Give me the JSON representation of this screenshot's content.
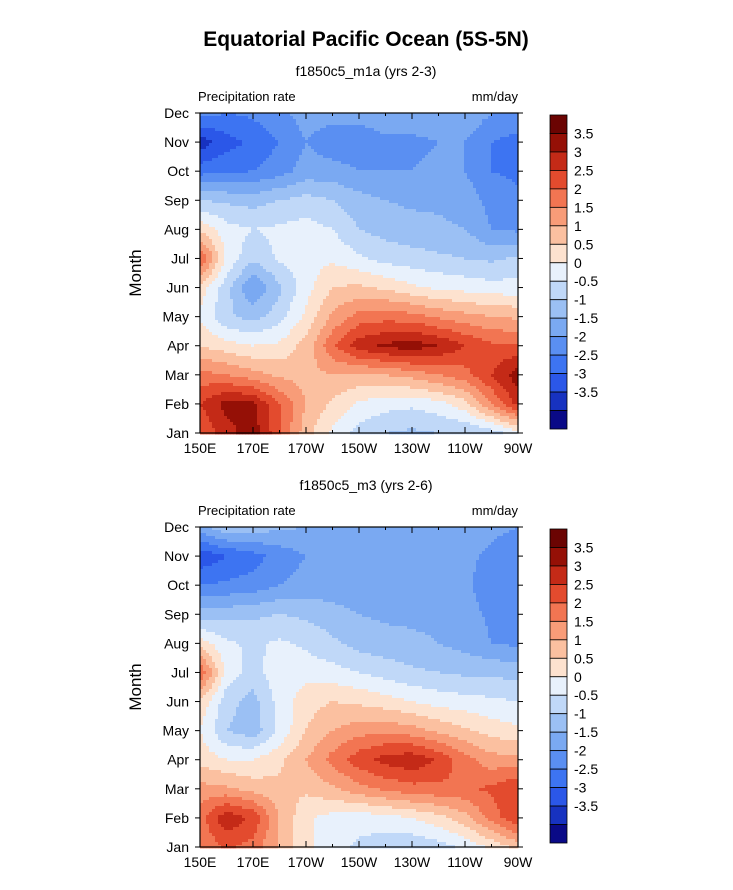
{
  "figure": {
    "title": "Equatorial Pacific Ocean (5S-5N)"
  },
  "colors": {
    "levels": [
      "#0a0a87",
      "#1732c0",
      "#2b57e8",
      "#3d74f2",
      "#5a8ff2",
      "#7aa9f2",
      "#9bc0f4",
      "#c0d8f8",
      "#e8f1fc",
      "#fde2cf",
      "#fbc0a0",
      "#f89c78",
      "#f27552",
      "#e34b2e",
      "#c42a17",
      "#951006",
      "#6b0402"
    ]
  },
  "chart_data": [
    {
      "type": "heatmap",
      "title": "f1850c5_m1a (yrs 2-3)",
      "left_label": "Precipitation rate",
      "right_label": "mm/day",
      "ylabel": "Month",
      "xlabel": "",
      "x_ticks": [
        "150E",
        "170E",
        "170W",
        "150W",
        "130W",
        "110W",
        "90W"
      ],
      "x_range_deg": [
        150,
        270
      ],
      "y_ticks": [
        "Jan",
        "Feb",
        "Mar",
        "Apr",
        "May",
        "Jun",
        "Jul",
        "Aug",
        "Sep",
        "Oct",
        "Nov",
        "Dec"
      ],
      "y_range": [
        1,
        12
      ],
      "colorbar_levels": [
        -4,
        -3.5,
        -3,
        -2.5,
        -2,
        -1.5,
        -1,
        -0.5,
        0,
        0.5,
        1,
        1.5,
        2,
        2.5,
        3,
        3.5,
        4
      ],
      "colorbar_labels": [
        "3.5",
        "3",
        "2.5",
        "2",
        "1.5",
        "1",
        "0.5",
        "0",
        "-0.5",
        "-1",
        "-1.5",
        "-2",
        "-2.5",
        "-3",
        "-3.5"
      ],
      "field": {
        "lon": [
          150,
          160,
          170,
          180,
          190,
          200,
          210,
          220,
          230,
          240,
          250,
          260,
          270
        ],
        "values": [
          [
            2.5,
            3.3,
            3.8,
            2.6,
            1.2,
            0.4,
            -0.2,
            -0.5,
            -0.6,
            -0.5,
            -0.5,
            -0.3,
            0.3
          ],
          [
            3.0,
            3.7,
            3.6,
            2.5,
            1.5,
            0.9,
            0.4,
            0.2,
            0.1,
            0.3,
            0.8,
            2.0,
            3.2
          ],
          [
            2.2,
            2.0,
            1.7,
            1.4,
            1.3,
            1.5,
            1.4,
            1.5,
            1.7,
            2.0,
            2.3,
            3.0,
            3.8
          ],
          [
            1.0,
            0.7,
            0.5,
            0.6,
            1.2,
            2.4,
            3.3,
            3.6,
            3.8,
            3.5,
            3.0,
            2.6,
            2.6
          ],
          [
            0.4,
            -0.4,
            -0.7,
            -0.2,
            0.6,
            1.6,
            2.2,
            2.3,
            2.2,
            1.9,
            1.7,
            1.5,
            1.4
          ],
          [
            0.8,
            -0.3,
            -1.5,
            -0.6,
            0.3,
            1.0,
            1.1,
            0.9,
            0.6,
            0.4,
            0.3,
            0.2,
            0.2
          ],
          [
            2.6,
            0.4,
            -0.4,
            0.1,
            0.3,
            0.4,
            0.1,
            -0.2,
            -0.3,
            -0.4,
            -0.5,
            -0.6,
            -0.4
          ],
          [
            0.9,
            0.2,
            0.0,
            0.1,
            0.2,
            0.0,
            -0.5,
            -0.7,
            -0.8,
            -0.9,
            -1.0,
            -1.5,
            -1.6
          ],
          [
            -0.5,
            -0.6,
            -0.7,
            -0.5,
            -0.3,
            -0.5,
            -0.8,
            -1.0,
            -1.1,
            -1.1,
            -1.2,
            -1.7,
            -1.9
          ],
          [
            -2.2,
            -2.1,
            -2.0,
            -1.7,
            -1.3,
            -1.3,
            -1.5,
            -1.5,
            -1.5,
            -1.4,
            -1.5,
            -2.0,
            -2.1
          ],
          [
            -3.3,
            -2.7,
            -2.4,
            -2.0,
            -1.5,
            -1.8,
            -1.8,
            -1.6,
            -1.6,
            -1.5,
            -1.5,
            -2.0,
            -2.2
          ],
          [
            -1.8,
            -2.0,
            -1.9,
            -1.6,
            -1.3,
            -1.3,
            -1.3,
            -1.2,
            -1.2,
            -1.2,
            -1.1,
            -1.5,
            -1.6
          ]
        ]
      }
    },
    {
      "type": "heatmap",
      "title": "f1850c5_m3 (yrs 2-6)",
      "left_label": "Precipitation rate",
      "right_label": "mm/day",
      "ylabel": "Month",
      "xlabel": "",
      "x_ticks": [
        "150E",
        "170E",
        "170W",
        "150W",
        "130W",
        "110W",
        "90W"
      ],
      "x_range_deg": [
        150,
        270
      ],
      "y_ticks": [
        "Jan",
        "Feb",
        "Mar",
        "Apr",
        "May",
        "Jun",
        "Jul",
        "Aug",
        "Sep",
        "Oct",
        "Nov",
        "Dec"
      ],
      "y_range": [
        1,
        12
      ],
      "colorbar_levels": [
        -4,
        -3.5,
        -3,
        -2.5,
        -2,
        -1.5,
        -1,
        -0.5,
        0,
        0.5,
        1,
        1.5,
        2,
        2.5,
        3,
        3.5,
        4
      ],
      "colorbar_labels": [
        "3.5",
        "3",
        "2.5",
        "2",
        "1.5",
        "1",
        "0.5",
        "0",
        "-0.5",
        "-1",
        "-1.5",
        "-2",
        "-2.5",
        "-3",
        "-3.5"
      ],
      "field": {
        "lon": [
          150,
          160,
          170,
          180,
          190,
          200,
          210,
          220,
          230,
          240,
          250,
          260,
          270
        ],
        "values": [
          [
            2.0,
            2.6,
            2.3,
            1.4,
            0.6,
            0.2,
            -0.1,
            -0.3,
            -0.4,
            -0.2,
            0.1,
            0.6,
            1.2
          ],
          [
            2.3,
            3.4,
            2.9,
            1.5,
            0.6,
            0.3,
            0.2,
            0.3,
            0.5,
            0.8,
            1.3,
            2.2,
            3.0
          ],
          [
            1.7,
            1.6,
            1.3,
            1.1,
            1.1,
            1.4,
            1.8,
            2.1,
            2.3,
            2.4,
            2.4,
            2.6,
            3.0
          ],
          [
            0.8,
            0.5,
            0.5,
            0.9,
            1.5,
            2.2,
            2.8,
            3.2,
            3.4,
            2.9,
            2.2,
            1.7,
            1.7
          ],
          [
            0.5,
            -0.5,
            -0.8,
            0.1,
            1.0,
            1.5,
            1.8,
            1.9,
            1.7,
            1.4,
            1.1,
            0.8,
            0.6
          ],
          [
            0.9,
            -0.3,
            -0.7,
            0.2,
            0.8,
            1.0,
            0.9,
            0.7,
            0.5,
            0.3,
            0.2,
            0.1,
            0.0
          ],
          [
            2.5,
            0.3,
            -0.2,
            0.3,
            0.3,
            0.2,
            0.0,
            -0.2,
            -0.4,
            -0.5,
            -0.6,
            -0.6,
            -0.7
          ],
          [
            0.8,
            0.1,
            -0.1,
            0.1,
            -0.1,
            -0.4,
            -0.7,
            -0.8,
            -0.9,
            -1.0,
            -1.2,
            -1.5,
            -1.6
          ],
          [
            -0.8,
            -0.7,
            -0.6,
            -0.5,
            -0.6,
            -0.8,
            -1.0,
            -1.1,
            -1.1,
            -1.1,
            -1.3,
            -1.6,
            -1.8
          ],
          [
            -2.0,
            -1.9,
            -1.8,
            -1.5,
            -1.3,
            -1.3,
            -1.4,
            -1.4,
            -1.4,
            -1.3,
            -1.4,
            -1.8,
            -2.0
          ],
          [
            -2.9,
            -2.5,
            -2.2,
            -1.8,
            -1.5,
            -1.4,
            -1.5,
            -1.4,
            -1.4,
            -1.2,
            -1.3,
            -1.7,
            -2.0
          ],
          [
            -1.2,
            -0.6,
            -0.7,
            -0.9,
            -1.0,
            -1.1,
            -1.1,
            -1.0,
            -1.0,
            -1.0,
            -1.0,
            -1.3,
            -1.5
          ]
        ]
      }
    }
  ]
}
